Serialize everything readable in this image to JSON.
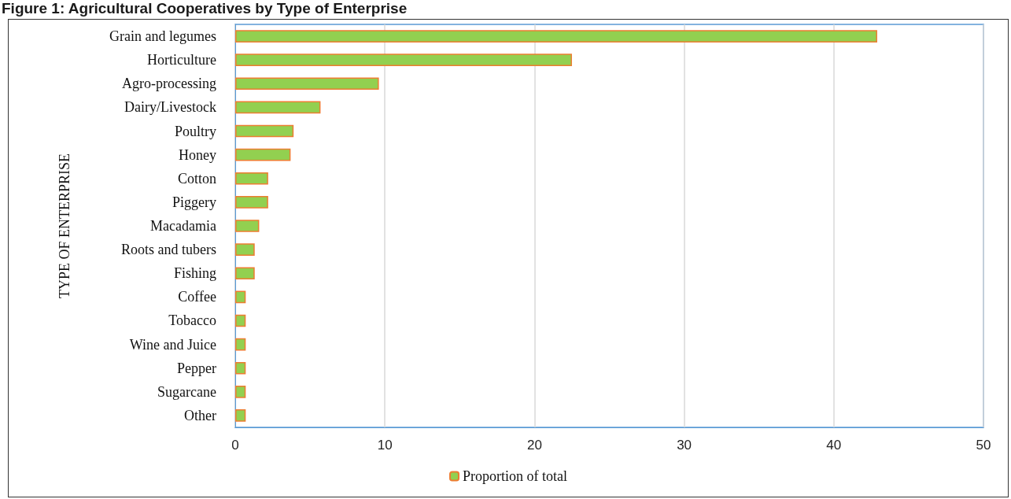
{
  "chart_data": {
    "type": "bar",
    "orientation": "horizontal",
    "title": "Figure 1: Agricultural Cooperatives by Type of Enterprise",
    "ylabel": "TYPE OF ENTERPRISE",
    "categories": [
      "Grain and legumes",
      "Horticulture",
      "Agro-processing",
      "Dairy/Livestock",
      "Poultry",
      "Honey",
      "Cotton",
      "Piggery",
      "Macadamia",
      "Roots and tubers",
      "Fishing",
      "Coffee",
      "Tobacco",
      "Wine and Juice",
      "Pepper",
      "Sugarcane",
      "Other"
    ],
    "series": [
      {
        "name": "Proportion of total",
        "color": "#92d050",
        "values": [
          42.9,
          22.5,
          9.6,
          5.7,
          3.9,
          3.7,
          2.2,
          2.2,
          1.6,
          1.3,
          1.3,
          0.7,
          0.7,
          0.7,
          0.7,
          0.7,
          0.7
        ]
      }
    ],
    "xlim": [
      0,
      50
    ],
    "xticks": [
      0,
      10,
      20,
      30,
      40,
      50
    ],
    "grid": "x",
    "legend": "bottom"
  }
}
